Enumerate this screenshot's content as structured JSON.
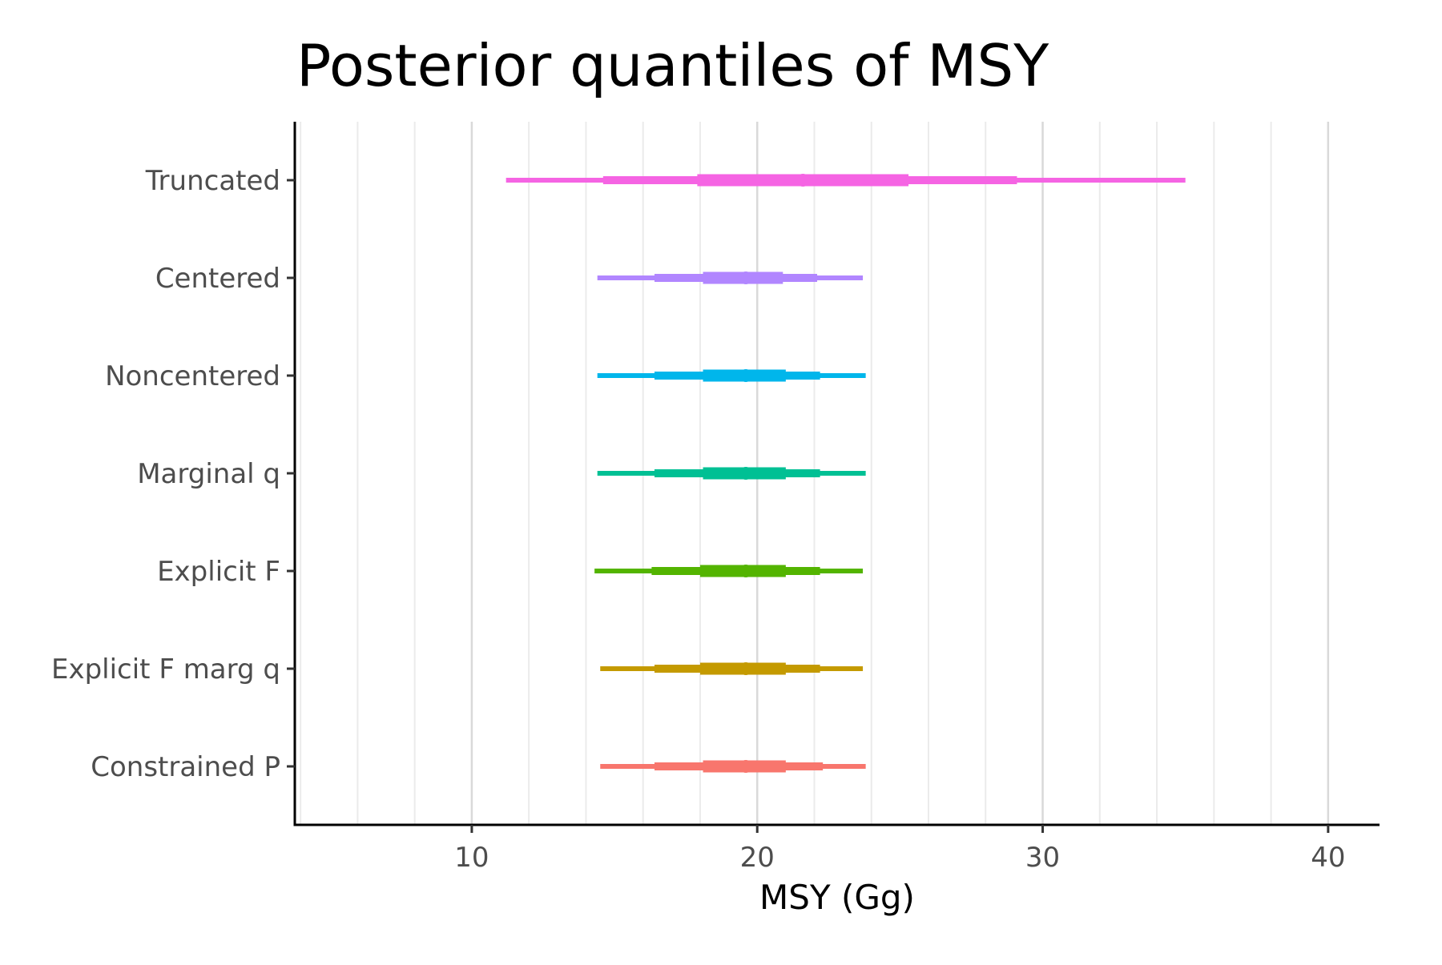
{
  "chart_data": {
    "type": "interval",
    "title": "Posterior quantiles of MSY",
    "xlabel": "MSY (Gg)",
    "ylabel": "",
    "xlim": [
      3.8,
      41.8
    ],
    "x_ticks": [
      10,
      20,
      30,
      40
    ],
    "x_tick_labels": [
      "10",
      "20",
      "30",
      "40"
    ],
    "grid": {
      "vertical_major": true,
      "vertical_minor": true,
      "horizontal": false
    },
    "categories": [
      "Truncated",
      "Centered",
      "Noncentered",
      "Marginal q",
      "Explicit F",
      "Explicit F marg q",
      "Constrained P"
    ],
    "series": [
      {
        "category": "Truncated",
        "color": "#f564e3",
        "outer": [
          11.2,
          35.0
        ],
        "middle": [
          14.6,
          29.1
        ],
        "inner": [
          17.9,
          25.3
        ],
        "median": 21.6
      },
      {
        "category": "Centered",
        "color": "#b186ff",
        "outer": [
          14.4,
          23.7
        ],
        "middle": [
          16.4,
          22.1
        ],
        "inner": [
          18.1,
          20.9
        ],
        "median": 19.6
      },
      {
        "category": "Noncentered",
        "color": "#00b6eb",
        "outer": [
          14.4,
          23.8
        ],
        "middle": [
          16.4,
          22.2
        ],
        "inner": [
          18.1,
          21.0
        ],
        "median": 19.6
      },
      {
        "category": "Marginal q",
        "color": "#00c094",
        "outer": [
          14.4,
          23.8
        ],
        "middle": [
          16.4,
          22.2
        ],
        "inner": [
          18.1,
          21.0
        ],
        "median": 19.6
      },
      {
        "category": "Explicit F",
        "color": "#53b400",
        "outer": [
          14.3,
          23.7
        ],
        "middle": [
          16.3,
          22.2
        ],
        "inner": [
          18.0,
          21.0
        ],
        "median": 19.6
      },
      {
        "category": "Explicit F marg q",
        "color": "#c49a00",
        "outer": [
          14.5,
          23.7
        ],
        "middle": [
          16.4,
          22.2
        ],
        "inner": [
          18.0,
          21.0
        ],
        "median": 19.6
      },
      {
        "category": "Constrained P",
        "color": "#f8766d",
        "outer": [
          14.5,
          23.8
        ],
        "middle": [
          16.4,
          22.3
        ],
        "inner": [
          18.1,
          21.0
        ],
        "median": 19.6
      }
    ]
  }
}
